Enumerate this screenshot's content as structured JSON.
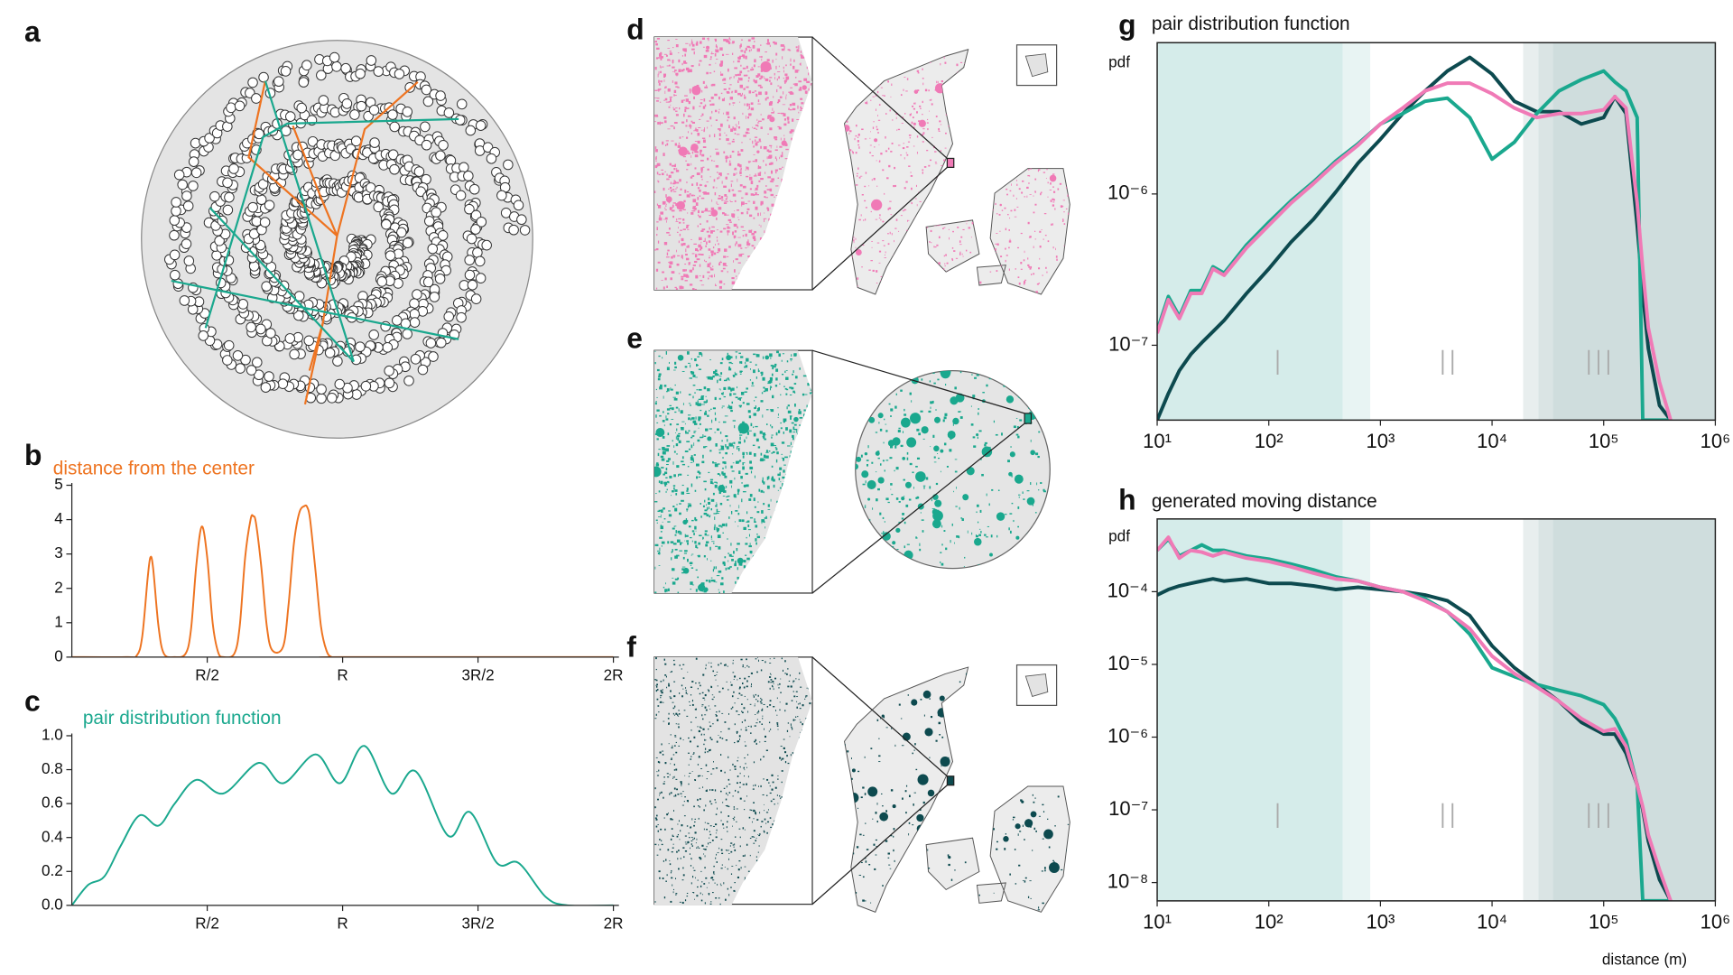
{
  "panels": {
    "labels": [
      "a",
      "b",
      "c",
      "d",
      "e",
      "f",
      "g",
      "h"
    ]
  },
  "chart_data": [
    {
      "type": "line",
      "title": "distance from the center",
      "title_color": "#ee7421",
      "frame": "spines",
      "x": [
        0,
        0.2,
        0.24,
        0.26,
        0.28,
        0.29,
        0.3,
        0.32,
        0.34,
        0.38,
        0.42,
        0.44,
        0.46,
        0.48,
        0.5,
        0.52,
        0.54,
        0.56,
        0.6,
        0.62,
        0.64,
        0.66,
        0.67,
        0.68,
        0.7,
        0.72,
        0.74,
        0.78,
        0.8,
        0.82,
        0.84,
        0.86,
        0.87,
        0.88,
        0.9,
        0.92,
        0.94,
        0.96,
        1.0,
        2.0
      ],
      "series": [
        {
          "color": "#ee7421",
          "values": [
            0,
            0,
            0.05,
            0.6,
            2.3,
            2.9,
            2.6,
            0.9,
            0.1,
            0,
            0.1,
            0.8,
            2.7,
            3.8,
            2.9,
            1.0,
            0.15,
            0,
            0.1,
            0.9,
            2.9,
            4.0,
            4.1,
            3.9,
            2.6,
            0.9,
            0.2,
            0.3,
            1.5,
            3.3,
            4.2,
            4.4,
            4.35,
            4.0,
            2.5,
            0.9,
            0.2,
            0,
            0,
            0
          ]
        }
      ],
      "xlim": [
        0,
        2
      ],
      "xticks": [
        {
          "value": 0.5,
          "label": "R/2"
        },
        {
          "value": 1,
          "label": "R"
        },
        {
          "value": 1.5,
          "label": "3R/2"
        },
        {
          "value": 2,
          "label": "2R"
        }
      ],
      "ylim": [
        0,
        5
      ],
      "yticks": [
        0,
        1,
        2,
        3,
        4,
        5
      ]
    },
    {
      "type": "line",
      "title": "pair distribution function",
      "title_color": "#1aa88e",
      "frame": "spines",
      "x": [
        0,
        0.06,
        0.12,
        0.18,
        0.25,
        0.32,
        0.38,
        0.46,
        0.56,
        0.69,
        0.78,
        0.9,
        0.99,
        1.08,
        1.18,
        1.27,
        1.39,
        1.47,
        1.57,
        1.65,
        1.75,
        1.83,
        2.0
      ],
      "series": [
        {
          "color": "#1aa88e",
          "values": [
            0,
            0.12,
            0.17,
            0.35,
            0.53,
            0.47,
            0.6,
            0.74,
            0.66,
            0.84,
            0.72,
            0.89,
            0.72,
            0.94,
            0.66,
            0.79,
            0.41,
            0.55,
            0.25,
            0.25,
            0.05,
            0,
            0
          ]
        }
      ],
      "xlim": [
        0,
        2
      ],
      "xticks": [
        {
          "value": 0.5,
          "label": "R/2"
        },
        {
          "value": 1,
          "label": "R"
        },
        {
          "value": 1.5,
          "label": "3R/2"
        },
        {
          "value": 2,
          "label": "2R"
        }
      ],
      "ylim": [
        0,
        1
      ],
      "yticks": [
        {
          "value": 0,
          "label": "0.0"
        },
        0.2,
        0.4,
        0.6,
        0.8,
        {
          "value": 1,
          "label": "1.0"
        }
      ]
    },
    {
      "type": "line",
      "title": "pair distribution function",
      "ylabel": "pdf",
      "frame": "box",
      "xscale": "log",
      "yscale": "log",
      "x": [
        10,
        12.6,
        15.8,
        20,
        25.1,
        31.6,
        39.8,
        63.1,
        100,
        158,
        251,
        398,
        631,
        1000,
        1585,
        2512,
        3981,
        6310,
        10000,
        15849,
        25119,
        39811,
        63096,
        100000,
        125893,
        158489,
        199526,
        223872,
        251189,
        316228,
        398107
      ],
      "series": [
        {
          "color": "#0d4a4f",
          "values": [
            3.2e-08,
            4.8e-08,
            6.8e-08,
            8.7e-08,
            1.04e-07,
            1.23e-07,
            1.46e-07,
            2.2e-07,
            3.2e-07,
            4.8e-07,
            6.8e-07,
            1.03e-06,
            1.6e-06,
            2.3e-06,
            3.4e-06,
            4.8e-06,
            6.5e-06,
            8e-06,
            6.2e-06,
            4.1e-06,
            3.5e-06,
            3.5e-06,
            2.9e-06,
            3.2e-06,
            4.4e-06,
            3.4e-06,
            6.2e-07,
            2.2e-07,
            9.5e-08,
            4e-08,
            3.2e-08
          ]
        },
        {
          "color": "#1aa88e",
          "values": [
            1.25e-07,
            2.1e-07,
            1.55e-07,
            2.3e-07,
            2.3e-07,
            3.3e-07,
            3e-07,
            4.6e-07,
            6.5e-07,
            9e-07,
            1.2e-06,
            1.65e-06,
            2.15e-06,
            2.9e-06,
            3.4e-06,
            4.1e-06,
            4.3e-06,
            3.2e-06,
            1.7e-06,
            2.2e-06,
            3.4e-06,
            4.8e-06,
            5.7e-06,
            6.5e-06,
            5.5e-06,
            4.8e-06,
            3.2e-06,
            3.2e-08,
            3.2e-08,
            3.2e-08,
            3.2e-08
          ]
        },
        {
          "color": "#f07ab6",
          "values": [
            1.2e-07,
            2e-07,
            1.5e-07,
            2.2e-07,
            2.2e-07,
            3.2e-07,
            2.9e-07,
            4.4e-07,
            6.2e-07,
            8.7e-07,
            1.17e-06,
            1.6e-06,
            2.1e-06,
            2.9e-06,
            3.7e-06,
            4.8e-06,
            5.4e-06,
            5.4e-06,
            4.6e-06,
            3.7e-06,
            3.2e-06,
            3.4e-06,
            3.4e-06,
            3.6e-06,
            4.4e-06,
            3.7e-06,
            8.7e-07,
            3.2e-07,
            1.3e-07,
            5.7e-08,
            3.2e-08
          ]
        }
      ],
      "xlim": [
        10,
        1000000
      ],
      "xticks": [
        {
          "value": 10,
          "label": "10¹"
        },
        {
          "value": 100,
          "label": "10²"
        },
        {
          "value": 1000,
          "label": "10³"
        },
        {
          "value": 10000,
          "label": "10⁴"
        },
        {
          "value": 100000,
          "label": "10⁵"
        },
        {
          "value": 1000000,
          "label": "10⁶"
        }
      ],
      "ylim": [
        3.2e-08,
        1e-05
      ],
      "yticks": [
        {
          "value": 1e-07,
          "label": "10⁻⁷"
        },
        {
          "value": 1e-06,
          "label": "10⁻⁶"
        }
      ],
      "shading": [
        {
          "xlim": [
            10,
            460
          ],
          "color": "#d5ecea"
        },
        {
          "xlim": [
            460,
            810
          ],
          "color": "#e8f4f3"
        },
        {
          "xlim": [
            19000,
            26000
          ],
          "color": "#e8eeee"
        },
        {
          "xlim": [
            26000,
            35000
          ],
          "color": "#dae4e4"
        },
        {
          "xlim": [
            35000,
            1000000
          ],
          "color": "#cfdddd"
        }
      ],
      "annotations": [
        {
          "text": "I",
          "x": 120,
          "y": 7.4e-08
        },
        {
          "text": "II",
          "x": 4000,
          "y": 7.4e-08
        },
        {
          "text": "III",
          "x": 90000,
          "y": 7.4e-08
        }
      ]
    },
    {
      "type": "line",
      "title": "generated moving distance",
      "ylabel": "pdf",
      "xlabel": "distance (m)",
      "frame": "box",
      "xscale": "log",
      "yscale": "log",
      "x": [
        10,
        12.6,
        15.8,
        20,
        25.1,
        31.6,
        39.8,
        63.1,
        100,
        158,
        251,
        398,
        631,
        1000,
        1585,
        2512,
        3981,
        6310,
        10000,
        15849,
        25119,
        39811,
        63096,
        100000,
        125893,
        158489,
        199526,
        223872,
        251189,
        316228,
        398107
      ],
      "series": [
        {
          "color": "#0d4a4f",
          "values": [
            9e-05,
            0.000107,
            0.00012,
            0.00013,
            0.00014,
            0.00015,
            0.00014,
            0.00015,
            0.00013,
            0.00013,
            0.00012,
            0.000107,
            0.000115,
            0.000107,
            0.0001,
            9e-05,
            7.5e-05,
            4.7e-05,
            1.8e-05,
            9e-06,
            5.3e-06,
            3.1e-06,
            1.6e-06,
            1.1e-06,
            1.1e-06,
            6e-07,
            2.2e-07,
            1e-07,
            3.7e-08,
            1.1e-08,
            5.6e-09
          ]
        },
        {
          "color": "#1aa88e",
          "values": [
            0.00037,
            0.00053,
            0.00031,
            0.00037,
            0.00044,
            0.00037,
            0.00037,
            0.00031,
            0.00028,
            0.00024,
            0.0002,
            0.00016,
            0.00014,
            0.000115,
            0.0001,
            8e-05,
            5.3e-05,
            2.6e-05,
            9e-06,
            6.8e-06,
            5.3e-06,
            4.4e-06,
            3.7e-06,
            2.8e-06,
            1.8e-06,
            9e-07,
            2.2e-07,
            5.6e-09,
            5.6e-09,
            5.6e-09,
            5.6e-09
          ]
        },
        {
          "color": "#f07ab6",
          "values": [
            0.00037,
            0.00056,
            0.00029,
            0.00037,
            0.00035,
            0.00031,
            0.00035,
            0.00029,
            0.00026,
            0.00022,
            0.00018,
            0.00015,
            0.00014,
            0.000115,
            0.0001,
            7.5e-05,
            5.3e-05,
            3.1e-05,
            1.3e-05,
            7.5e-06,
            4.9e-06,
            3.1e-06,
            1.8e-06,
            1.2e-06,
            1.3e-06,
            7.5e-07,
            2.2e-07,
            1.1e-07,
            4.5e-08,
            1.5e-08,
            5.6e-09
          ]
        }
      ],
      "xlim": [
        10,
        1000000
      ],
      "xticks": [
        {
          "value": 10,
          "label": "10¹"
        },
        {
          "value": 100,
          "label": "10²"
        },
        {
          "value": 1000,
          "label": "10³"
        },
        {
          "value": 10000,
          "label": "10⁴"
        },
        {
          "value": 100000,
          "label": "10⁵"
        },
        {
          "value": 1000000,
          "label": "10⁶"
        }
      ],
      "ylim": [
        5.6e-09,
        0.001
      ],
      "yticks": [
        {
          "value": 1e-08,
          "label": "10⁻⁸"
        },
        {
          "value": 1e-07,
          "label": "10⁻⁷"
        },
        {
          "value": 1e-06,
          "label": "10⁻⁶"
        },
        {
          "value": 1e-05,
          "label": "10⁻⁵"
        },
        {
          "value": 0.0001,
          "label": "10⁻⁴"
        }
      ],
      "shading": [
        {
          "xlim": [
            10,
            460
          ],
          "color": "#d5ecea"
        },
        {
          "xlim": [
            460,
            810
          ],
          "color": "#e8f4f3"
        },
        {
          "xlim": [
            19000,
            26000
          ],
          "color": "#e8eeee"
        },
        {
          "xlim": [
            26000,
            35000
          ],
          "color": "#dae4e4"
        },
        {
          "xlim": [
            35000,
            1000000
          ],
          "color": "#cfdddd"
        }
      ],
      "annotations": [
        {
          "text": "I",
          "x": 120,
          "y": 7.6e-08
        },
        {
          "text": "II",
          "x": 4000,
          "y": 7.6e-08
        },
        {
          "text": "III",
          "x": 90000,
          "y": 7.6e-08
        }
      ]
    }
  ]
}
